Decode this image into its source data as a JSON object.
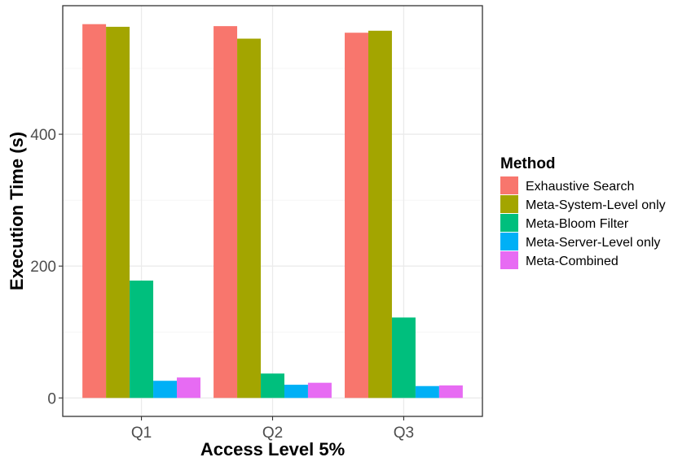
{
  "chart_data": {
    "type": "bar",
    "categories": [
      "Q1",
      "Q2",
      "Q3"
    ],
    "series": [
      {
        "name": "Exhaustive Search",
        "color": "#F8766D",
        "values": [
          567,
          564,
          554
        ]
      },
      {
        "name": "Meta-System-Level only",
        "color": "#A3A500",
        "values": [
          563,
          545,
          557
        ]
      },
      {
        "name": "Meta-Bloom Filter",
        "color": "#00BF7D",
        "values": [
          178,
          37,
          122
        ]
      },
      {
        "name": "Meta-Server-Level only",
        "color": "#00B0F6",
        "values": [
          26,
          20,
          18
        ]
      },
      {
        "name": "Meta-Combined",
        "color": "#E76BF3",
        "values": [
          31,
          23,
          19
        ]
      }
    ],
    "xlabel": "Access Level 5%",
    "ylabel": "Execution Time (s)",
    "ylim": [
      -28,
      595
    ],
    "yticks": [
      0,
      200,
      400
    ],
    "legend_title": "Method",
    "legend_position": "right",
    "grid": true
  }
}
